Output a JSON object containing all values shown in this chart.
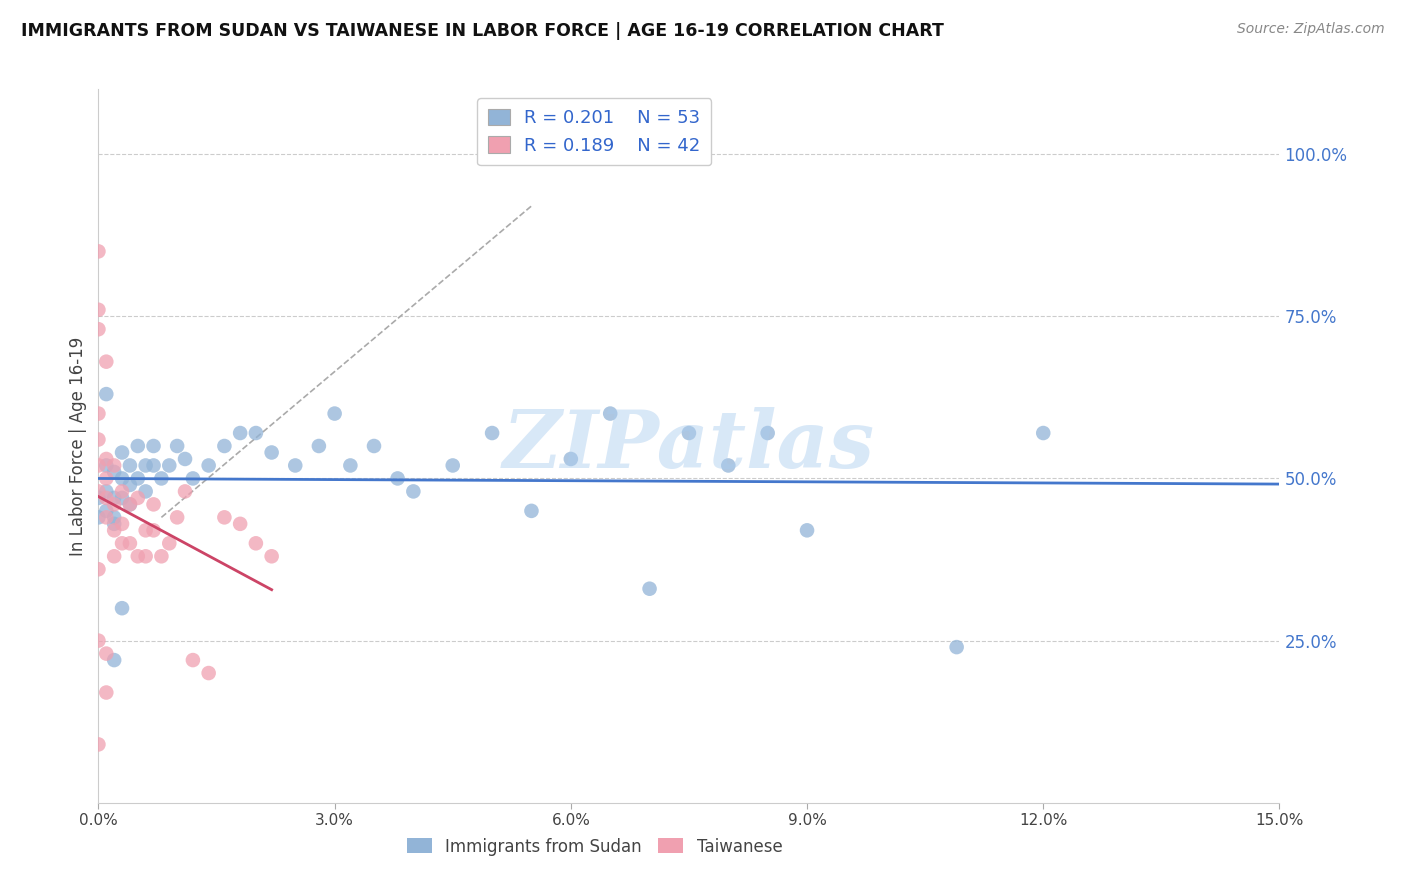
{
  "title": "IMMIGRANTS FROM SUDAN VS TAIWANESE IN LABOR FORCE | AGE 16-19 CORRELATION CHART",
  "source": "Source: ZipAtlas.com",
  "ylabel": "In Labor Force | Age 16-19",
  "xlim": [
    0.0,
    0.15
  ],
  "ylim": [
    0.0,
    1.1
  ],
  "xticks": [
    0.0,
    0.03,
    0.06,
    0.09,
    0.12,
    0.15
  ],
  "xtick_labels": [
    "0.0%",
    "3.0%",
    "6.0%",
    "9.0%",
    "12.0%",
    "15.0%"
  ],
  "yticks_right": [
    0.25,
    0.5,
    0.75,
    1.0
  ],
  "ytick_labels_right": [
    "25.0%",
    "50.0%",
    "75.0%",
    "100.0%"
  ],
  "legend_sudan_R": "R = 0.201",
  "legend_sudan_N": "N = 53",
  "legend_taiwan_R": "R = 0.189",
  "legend_taiwan_N": "N = 42",
  "blue_color": "#92B4D7",
  "pink_color": "#F0A0B0",
  "line_blue": "#4477CC",
  "line_pink": "#CC4466",
  "watermark": "ZIPatlas",
  "watermark_color": "#AACCEE",
  "background_color": "#FFFFFF",
  "grid_color": "#CCCCCC",
  "sudan_x": [
    0.0,
    0.0,
    0.001,
    0.001,
    0.001,
    0.001,
    0.002,
    0.002,
    0.002,
    0.002,
    0.003,
    0.003,
    0.003,
    0.004,
    0.004,
    0.004,
    0.005,
    0.005,
    0.006,
    0.006,
    0.007,
    0.007,
    0.008,
    0.009,
    0.01,
    0.011,
    0.012,
    0.014,
    0.016,
    0.018,
    0.02,
    0.022,
    0.025,
    0.028,
    0.03,
    0.032,
    0.035,
    0.038,
    0.04,
    0.045,
    0.05,
    0.055,
    0.06,
    0.065,
    0.07,
    0.075,
    0.08,
    0.085,
    0.09,
    0.109,
    0.12,
    0.003,
    0.002
  ],
  "sudan_y": [
    0.47,
    0.44,
    0.52,
    0.48,
    0.45,
    0.63,
    0.51,
    0.47,
    0.44,
    0.43,
    0.54,
    0.5,
    0.47,
    0.52,
    0.49,
    0.46,
    0.55,
    0.5,
    0.52,
    0.48,
    0.55,
    0.52,
    0.5,
    0.52,
    0.55,
    0.53,
    0.5,
    0.52,
    0.55,
    0.57,
    0.57,
    0.54,
    0.52,
    0.55,
    0.6,
    0.52,
    0.55,
    0.5,
    0.48,
    0.52,
    0.57,
    0.45,
    0.53,
    0.6,
    0.33,
    0.57,
    0.52,
    0.57,
    0.42,
    0.24,
    0.57,
    0.3,
    0.22
  ],
  "taiwan_x": [
    0.0,
    0.0,
    0.0,
    0.0,
    0.0,
    0.0,
    0.0,
    0.0,
    0.0,
    0.001,
    0.001,
    0.001,
    0.001,
    0.001,
    0.001,
    0.002,
    0.002,
    0.002,
    0.002,
    0.003,
    0.003,
    0.003,
    0.004,
    0.004,
    0.005,
    0.005,
    0.006,
    0.006,
    0.007,
    0.007,
    0.008,
    0.009,
    0.01,
    0.011,
    0.012,
    0.014,
    0.016,
    0.018,
    0.02,
    0.022,
    0.0,
    0.001
  ],
  "taiwan_y": [
    0.85,
    0.76,
    0.73,
    0.6,
    0.56,
    0.52,
    0.48,
    0.36,
    0.09,
    0.68,
    0.53,
    0.5,
    0.47,
    0.44,
    0.23,
    0.52,
    0.46,
    0.42,
    0.38,
    0.48,
    0.43,
    0.4,
    0.46,
    0.4,
    0.47,
    0.38,
    0.42,
    0.38,
    0.46,
    0.42,
    0.38,
    0.4,
    0.44,
    0.48,
    0.22,
    0.2,
    0.44,
    0.43,
    0.4,
    0.38,
    0.25,
    0.17
  ],
  "ref_line_x": [
    0.008,
    0.055
  ],
  "ref_line_y": [
    0.44,
    0.92
  ]
}
